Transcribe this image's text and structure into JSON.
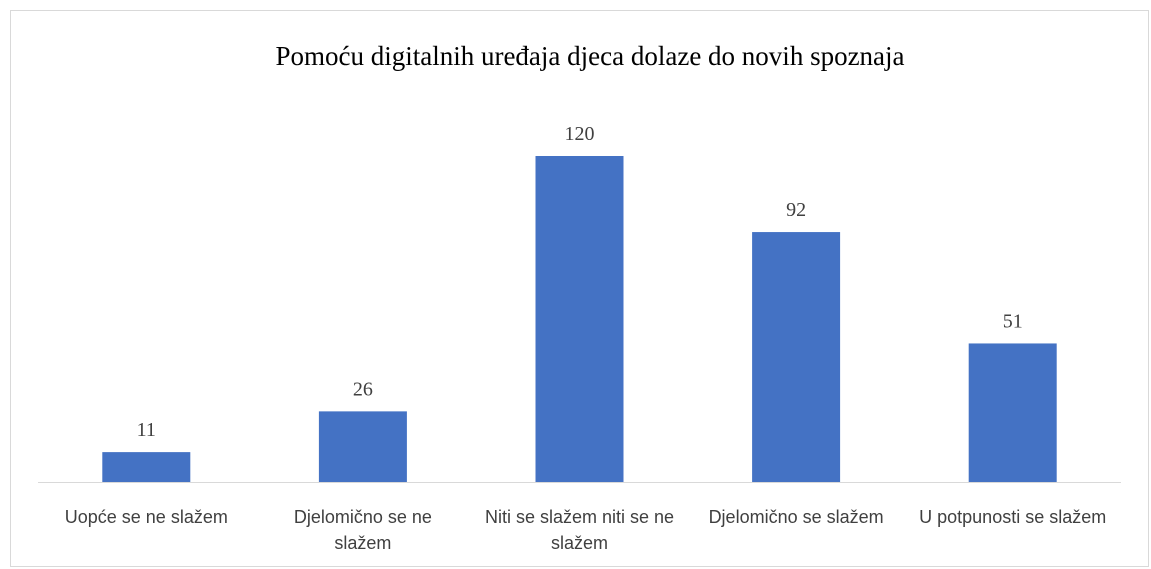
{
  "chart_data": {
    "type": "bar",
    "title": "Pomoću digitalnih uređaja djeca dolaze do novih spoznaja",
    "categories": [
      "Uopće se ne slažem",
      "Djelomično se ne slažem",
      "Niti se slažem niti se ne slažem",
      "Djelomično se slažem",
      "U potpunosti se slažem"
    ],
    "values": [
      11,
      26,
      120,
      92,
      51
    ],
    "color": "#4472c4"
  }
}
